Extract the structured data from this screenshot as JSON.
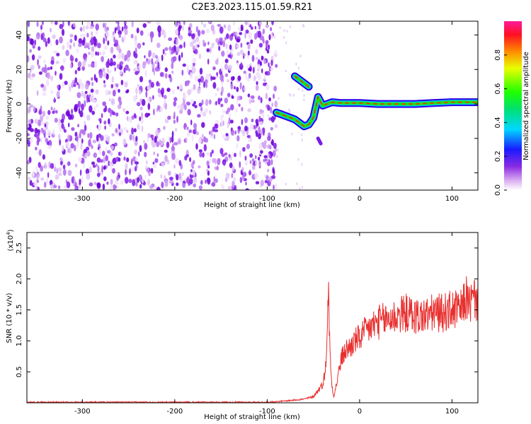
{
  "title": "C2E3.2023.115.01.59.R21",
  "chart_data": [
    {
      "type": "heatmap",
      "xlabel": "Height of straight line (km)",
      "ylabel": "Frequency (Hz)",
      "xlim": [
        -360,
        128
      ],
      "ylim": [
        -50,
        48
      ],
      "x_ticks": [
        -300,
        -200,
        -100,
        0,
        100
      ],
      "y_ticks": [
        -40,
        -20,
        0,
        20,
        40
      ],
      "colorbar": {
        "label": "Normalized spectral amplitude",
        "range": [
          0,
          1
        ],
        "ticks": [
          "0.0",
          "0.2",
          "0.4",
          "0.6",
          "0.8"
        ]
      },
      "features": {
        "noise_region_x": [
          -360,
          -90
        ],
        "signal_line": {
          "x": [
            -90,
            -80,
            -70,
            -60,
            -55,
            -50,
            -45,
            -40,
            -30,
            -20,
            0,
            20,
            40,
            60,
            80,
            100,
            120,
            128
          ],
          "y": [
            -5,
            -7,
            -9,
            -13,
            -12,
            -8,
            4,
            -1,
            1,
            0.5,
            0.5,
            0,
            0,
            0,
            0.5,
            1,
            1,
            1
          ]
        },
        "upper_branch": {
          "x": [
            -70,
            -65,
            -60,
            -55
          ],
          "y": [
            16,
            14,
            12,
            10
          ]
        },
        "lower_branch": {
          "x": [
            -45,
            -42
          ],
          "y": [
            -20,
            -23
          ]
        }
      }
    },
    {
      "type": "line",
      "xlabel": "Height of straight line (km)",
      "ylabel": "SNR (10 * v/v)",
      "multiplier": "(x10",
      "multiplier_exp": "4",
      "xlim": [
        -360,
        128
      ],
      "ylim": [
        0,
        2.75
      ],
      "x_ticks": [
        -300,
        -200,
        -100,
        0,
        100
      ],
      "y_ticks": [
        "0.5",
        "1.0",
        "1.5",
        "2.0",
        "2.5"
      ],
      "y_tick_values": [
        0.5,
        1.0,
        1.5,
        2.0,
        2.5
      ],
      "color": "#e8302f",
      "series": [
        {
          "x": [
            -360,
            -300,
            -200,
            -100,
            -80,
            -60,
            -50,
            -45,
            -40,
            -37,
            -35,
            -34,
            -33,
            -32,
            -31,
            -30,
            -28,
            -25,
            -20,
            -15,
            -10,
            -5,
            0,
            10,
            20,
            30,
            40,
            50,
            60,
            70,
            80,
            90,
            100,
            110,
            115,
            120,
            125,
            128
          ],
          "y": [
            0.01,
            0.01,
            0.01,
            0.01,
            0.03,
            0.06,
            0.1,
            0.2,
            0.3,
            0.5,
            1.2,
            1.85,
            1.4,
            0.8,
            0.5,
            0.3,
            0.1,
            0.3,
            0.7,
            0.85,
            0.9,
            1.0,
            1.05,
            1.2,
            1.3,
            1.35,
            1.4,
            1.45,
            1.4,
            1.4,
            1.45,
            1.45,
            1.5,
            1.5,
            1.7,
            1.6,
            1.7,
            1.6
          ]
        }
      ]
    }
  ]
}
